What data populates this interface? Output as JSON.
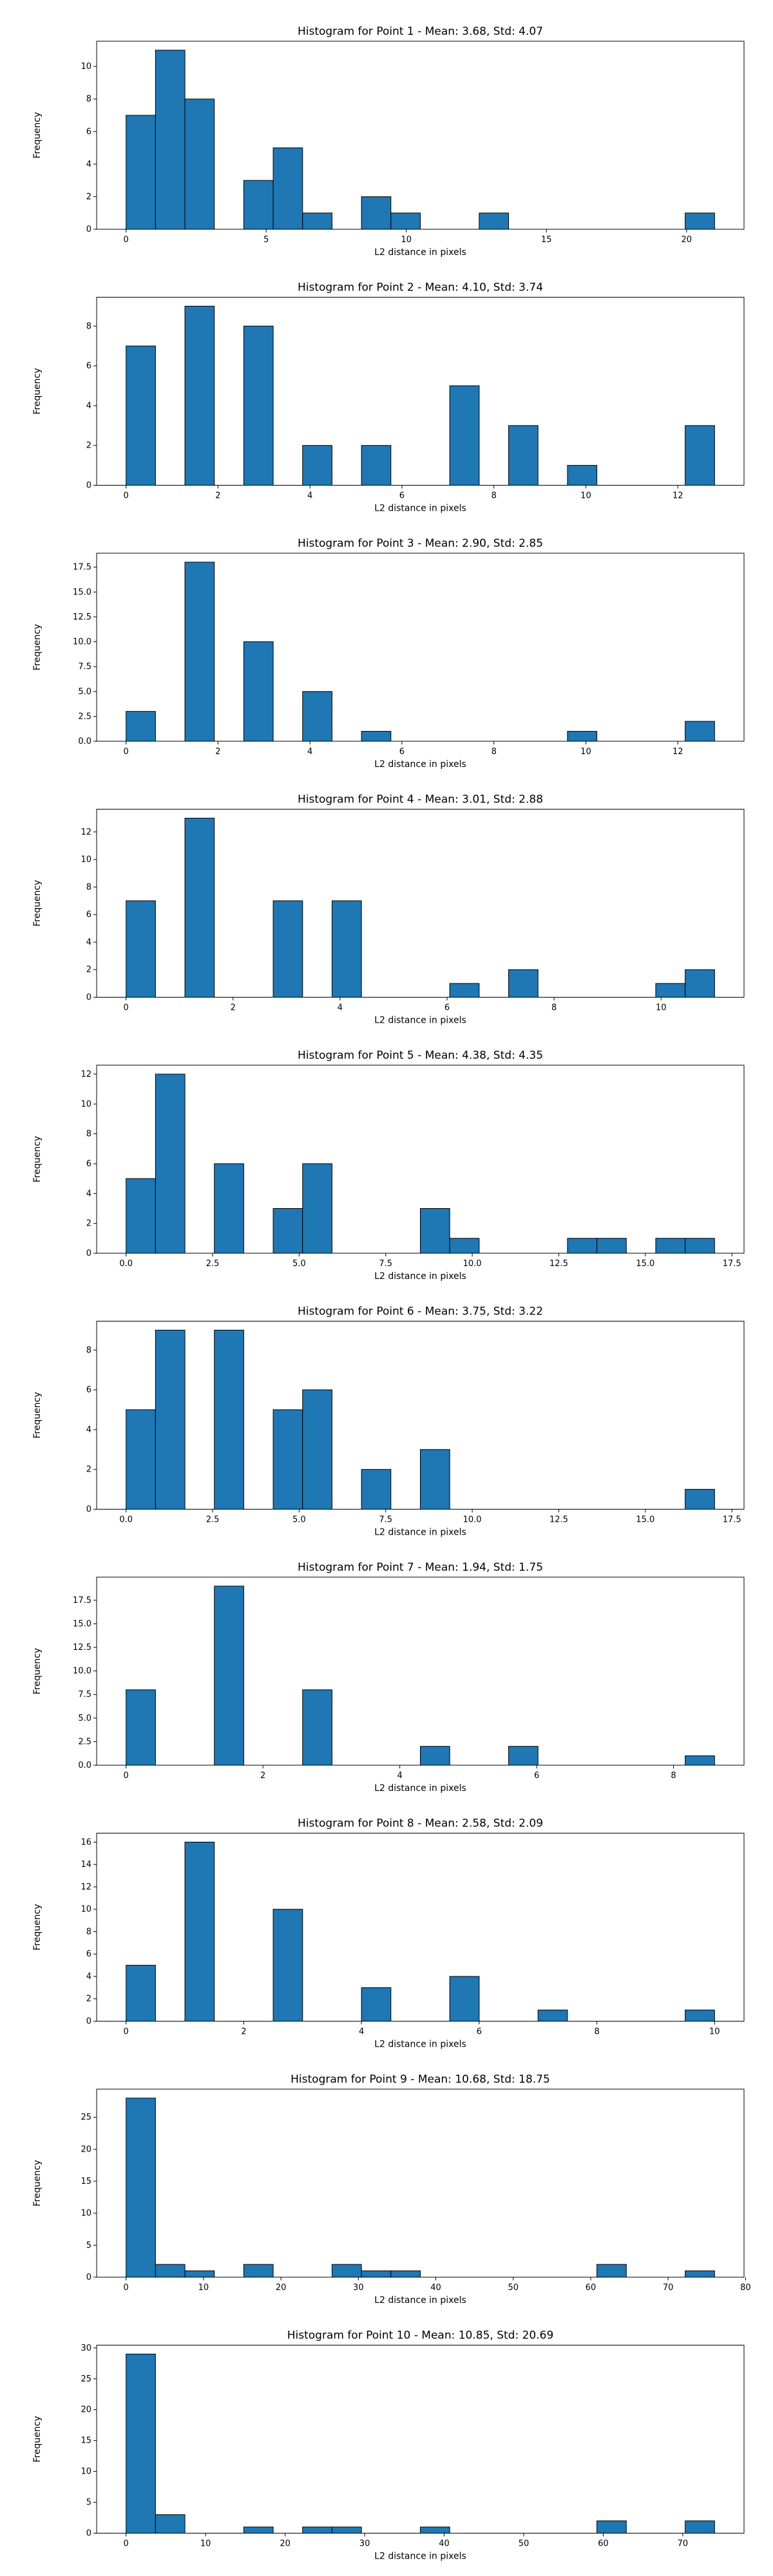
{
  "colors": {
    "bar_fill": "#1f77b4",
    "bar_edge": "#000000",
    "background": "#ffffff"
  },
  "chart_data": [
    {
      "type": "bar",
      "title": "Histogram for Point 1 - Mean: 3.68, Std: 4.07",
      "xlabel": "L2 distance in pixels",
      "ylabel": "Frequency",
      "xlim": [
        -1.05,
        22.05
      ],
      "ylim": [
        0,
        11.55
      ],
      "xticks": [
        {
          "v": 0,
          "label": "0"
        },
        {
          "v": 5,
          "label": "5"
        },
        {
          "v": 10,
          "label": "10"
        },
        {
          "v": 15,
          "label": "15"
        },
        {
          "v": 20,
          "label": "20"
        }
      ],
      "yticks": [
        {
          "v": 0,
          "label": "0"
        },
        {
          "v": 2,
          "label": "2"
        },
        {
          "v": 4,
          "label": "4"
        },
        {
          "v": 6,
          "label": "6"
        },
        {
          "v": 8,
          "label": "8"
        },
        {
          "v": 10,
          "label": "10"
        }
      ],
      "bin_edges": [
        0,
        1.05,
        2.1,
        3.15,
        4.2,
        5.25,
        6.3,
        7.35,
        8.4,
        9.45,
        10.5,
        11.55,
        12.6,
        13.65,
        14.7,
        15.75,
        16.8,
        17.85,
        18.9,
        19.95,
        21.0
      ],
      "counts": [
        7,
        11,
        8,
        0,
        3,
        5,
        1,
        0,
        2,
        1,
        0,
        0,
        1,
        0,
        0,
        0,
        0,
        0,
        0,
        1
      ]
    },
    {
      "type": "bar",
      "title": "Histogram for Point 2 - Mean: 4.10, Std: 3.74",
      "xlabel": "L2 distance in pixels",
      "ylabel": "Frequency",
      "xlim": [
        -0.64,
        13.44
      ],
      "ylim": [
        0,
        9.45
      ],
      "xticks": [
        {
          "v": 0,
          "label": "0"
        },
        {
          "v": 2,
          "label": "2"
        },
        {
          "v": 4,
          "label": "4"
        },
        {
          "v": 6,
          "label": "6"
        },
        {
          "v": 8,
          "label": "8"
        },
        {
          "v": 10,
          "label": "10"
        },
        {
          "v": 12,
          "label": "12"
        }
      ],
      "yticks": [
        {
          "v": 0,
          "label": "0"
        },
        {
          "v": 2,
          "label": "2"
        },
        {
          "v": 4,
          "label": "4"
        },
        {
          "v": 6,
          "label": "6"
        },
        {
          "v": 8,
          "label": "8"
        }
      ],
      "bin_edges": [
        0,
        0.64,
        1.28,
        1.92,
        2.56,
        3.2,
        3.84,
        4.48,
        5.12,
        5.76,
        6.4,
        7.04,
        7.68,
        8.32,
        8.96,
        9.6,
        10.24,
        10.88,
        11.52,
        12.16,
        12.8
      ],
      "counts": [
        7,
        0,
        9,
        0,
        8,
        0,
        2,
        0,
        2,
        0,
        0,
        5,
        0,
        3,
        0,
        1,
        0,
        0,
        0,
        3
      ]
    },
    {
      "type": "bar",
      "title": "Histogram for Point 3 - Mean: 2.90, Std: 2.85",
      "xlabel": "L2 distance in pixels",
      "ylabel": "Frequency",
      "xlim": [
        -0.64,
        13.44
      ],
      "ylim": [
        0,
        18.9
      ],
      "xticks": [
        {
          "v": 0,
          "label": "0"
        },
        {
          "v": 2,
          "label": "2"
        },
        {
          "v": 4,
          "label": "4"
        },
        {
          "v": 6,
          "label": "6"
        },
        {
          "v": 8,
          "label": "8"
        },
        {
          "v": 10,
          "label": "10"
        },
        {
          "v": 12,
          "label": "12"
        }
      ],
      "yticks": [
        {
          "v": 0,
          "label": "0.0"
        },
        {
          "v": 2.5,
          "label": "2.5"
        },
        {
          "v": 5,
          "label": "5.0"
        },
        {
          "v": 7.5,
          "label": "7.5"
        },
        {
          "v": 10,
          "label": "10.0"
        },
        {
          "v": 12.5,
          "label": "12.5"
        },
        {
          "v": 15,
          "label": "15.0"
        },
        {
          "v": 17.5,
          "label": "17.5"
        }
      ],
      "bin_edges": [
        0,
        0.64,
        1.28,
        1.92,
        2.56,
        3.2,
        3.84,
        4.48,
        5.12,
        5.76,
        6.4,
        7.04,
        7.68,
        8.32,
        8.96,
        9.6,
        10.24,
        10.88,
        11.52,
        12.16,
        12.8
      ],
      "counts": [
        3,
        0,
        18,
        0,
        10,
        0,
        5,
        0,
        1,
        0,
        0,
        0,
        0,
        0,
        0,
        1,
        0,
        0,
        0,
        2
      ]
    },
    {
      "type": "bar",
      "title": "Histogram for Point 4 - Mean: 3.01, Std: 2.88",
      "xlabel": "L2 distance in pixels",
      "ylabel": "Frequency",
      "xlim": [
        -0.55,
        11.55
      ],
      "ylim": [
        0,
        13.65
      ],
      "xticks": [
        {
          "v": 0,
          "label": "0"
        },
        {
          "v": 2,
          "label": "2"
        },
        {
          "v": 4,
          "label": "4"
        },
        {
          "v": 6,
          "label": "6"
        },
        {
          "v": 8,
          "label": "8"
        },
        {
          "v": 10,
          "label": "10"
        }
      ],
      "yticks": [
        {
          "v": 0,
          "label": "0"
        },
        {
          "v": 2,
          "label": "2"
        },
        {
          "v": 4,
          "label": "4"
        },
        {
          "v": 6,
          "label": "6"
        },
        {
          "v": 8,
          "label": "8"
        },
        {
          "v": 10,
          "label": "10"
        },
        {
          "v": 12,
          "label": "12"
        }
      ],
      "bin_edges": [
        0,
        0.55,
        1.1,
        1.65,
        2.2,
        2.75,
        3.3,
        3.85,
        4.4,
        4.95,
        5.5,
        6.05,
        6.6,
        7.15,
        7.7,
        8.25,
        8.8,
        9.35,
        9.9,
        10.45,
        11.0
      ],
      "counts": [
        7,
        0,
        13,
        0,
        0,
        7,
        0,
        7,
        0,
        0,
        0,
        1,
        0,
        2,
        0,
        0,
        0,
        0,
        1,
        2
      ]
    },
    {
      "type": "bar",
      "title": "Histogram for Point 5 - Mean: 4.38, Std: 4.35",
      "xlabel": "L2 distance in pixels",
      "ylabel": "Frequency",
      "xlim": [
        -0.85,
        17.85
      ],
      "ylim": [
        0,
        12.6
      ],
      "xticks": [
        {
          "v": 0,
          "label": "0.0"
        },
        {
          "v": 2.5,
          "label": "2.5"
        },
        {
          "v": 5,
          "label": "5.0"
        },
        {
          "v": 7.5,
          "label": "7.5"
        },
        {
          "v": 10,
          "label": "10.0"
        },
        {
          "v": 12.5,
          "label": "12.5"
        },
        {
          "v": 15,
          "label": "15.0"
        },
        {
          "v": 17.5,
          "label": "17.5"
        }
      ],
      "yticks": [
        {
          "v": 0,
          "label": "0"
        },
        {
          "v": 2,
          "label": "2"
        },
        {
          "v": 4,
          "label": "4"
        },
        {
          "v": 6,
          "label": "6"
        },
        {
          "v": 8,
          "label": "8"
        },
        {
          "v": 10,
          "label": "10"
        },
        {
          "v": 12,
          "label": "12"
        }
      ],
      "bin_edges": [
        0,
        0.85,
        1.7,
        2.55,
        3.4,
        4.25,
        5.1,
        5.95,
        6.8,
        7.65,
        8.5,
        9.35,
        10.2,
        11.05,
        11.9,
        12.75,
        13.6,
        14.45,
        15.3,
        16.15,
        17.0
      ],
      "counts": [
        5,
        12,
        0,
        6,
        0,
        3,
        6,
        0,
        0,
        0,
        3,
        1,
        0,
        0,
        0,
        1,
        1,
        0,
        1,
        1
      ]
    },
    {
      "type": "bar",
      "title": "Histogram for Point 6 - Mean: 3.75, Std: 3.22",
      "xlabel": "L2 distance in pixels",
      "ylabel": "Frequency",
      "xlim": [
        -0.85,
        17.85
      ],
      "ylim": [
        0,
        9.45
      ],
      "xticks": [
        {
          "v": 0,
          "label": "0.0"
        },
        {
          "v": 2.5,
          "label": "2.5"
        },
        {
          "v": 5,
          "label": "5.0"
        },
        {
          "v": 7.5,
          "label": "7.5"
        },
        {
          "v": 10,
          "label": "10.0"
        },
        {
          "v": 12.5,
          "label": "12.5"
        },
        {
          "v": 15,
          "label": "15.0"
        },
        {
          "v": 17.5,
          "label": "17.5"
        }
      ],
      "yticks": [
        {
          "v": 0,
          "label": "0"
        },
        {
          "v": 2,
          "label": "2"
        },
        {
          "v": 4,
          "label": "4"
        },
        {
          "v": 6,
          "label": "6"
        },
        {
          "v": 8,
          "label": "8"
        }
      ],
      "bin_edges": [
        0,
        0.85,
        1.7,
        2.55,
        3.4,
        4.25,
        5.1,
        5.95,
        6.8,
        7.65,
        8.5,
        9.35,
        10.2,
        11.05,
        11.9,
        12.75,
        13.6,
        14.45,
        15.3,
        16.15,
        17.0
      ],
      "counts": [
        5,
        9,
        0,
        9,
        0,
        5,
        6,
        0,
        2,
        0,
        3,
        0,
        0,
        0,
        0,
        0,
        0,
        0,
        0,
        1
      ]
    },
    {
      "type": "bar",
      "title": "Histogram for Point 7 - Mean: 1.94, Std: 1.75",
      "xlabel": "L2 distance in pixels",
      "ylabel": "Frequency",
      "xlim": [
        -0.43,
        9.03
      ],
      "ylim": [
        0,
        19.95
      ],
      "xticks": [
        {
          "v": 0,
          "label": "0"
        },
        {
          "v": 2,
          "label": "2"
        },
        {
          "v": 4,
          "label": "4"
        },
        {
          "v": 6,
          "label": "6"
        },
        {
          "v": 8,
          "label": "8"
        }
      ],
      "yticks": [
        {
          "v": 0,
          "label": "0.0"
        },
        {
          "v": 2.5,
          "label": "2.5"
        },
        {
          "v": 5,
          "label": "5.0"
        },
        {
          "v": 7.5,
          "label": "7.5"
        },
        {
          "v": 10,
          "label": "10.0"
        },
        {
          "v": 12.5,
          "label": "12.5"
        },
        {
          "v": 15,
          "label": "15.0"
        },
        {
          "v": 17.5,
          "label": "17.5"
        }
      ],
      "bin_edges": [
        0,
        0.43,
        0.86,
        1.29,
        1.72,
        2.15,
        2.58,
        3.01,
        3.44,
        3.87,
        4.3,
        4.73,
        5.16,
        5.59,
        6.02,
        6.45,
        6.88,
        7.31,
        7.74,
        8.17,
        8.6
      ],
      "counts": [
        8,
        0,
        0,
        19,
        0,
        0,
        8,
        0,
        0,
        0,
        2,
        0,
        0,
        2,
        0,
        0,
        0,
        0,
        0,
        1
      ]
    },
    {
      "type": "bar",
      "title": "Histogram for Point 8 - Mean: 2.58, Std: 2.09",
      "xlabel": "L2 distance in pixels",
      "ylabel": "Frequency",
      "xlim": [
        -0.5,
        10.5
      ],
      "ylim": [
        0,
        16.8
      ],
      "xticks": [
        {
          "v": 0,
          "label": "0"
        },
        {
          "v": 2,
          "label": "2"
        },
        {
          "v": 4,
          "label": "4"
        },
        {
          "v": 6,
          "label": "6"
        },
        {
          "v": 8,
          "label": "8"
        },
        {
          "v": 10,
          "label": "10"
        }
      ],
      "yticks": [
        {
          "v": 0,
          "label": "0"
        },
        {
          "v": 2,
          "label": "2"
        },
        {
          "v": 4,
          "label": "4"
        },
        {
          "v": 6,
          "label": "6"
        },
        {
          "v": 8,
          "label": "8"
        },
        {
          "v": 10,
          "label": "10"
        },
        {
          "v": 12,
          "label": "12"
        },
        {
          "v": 14,
          "label": "14"
        },
        {
          "v": 16,
          "label": "16"
        }
      ],
      "bin_edges": [
        0,
        0.5,
        1.0,
        1.5,
        2.0,
        2.5,
        3.0,
        3.5,
        4.0,
        4.5,
        5.0,
        5.5,
        6.0,
        6.5,
        7.0,
        7.5,
        8.0,
        8.5,
        9.0,
        9.5,
        10.0
      ],
      "counts": [
        5,
        0,
        16,
        0,
        0,
        10,
        0,
        0,
        3,
        0,
        0,
        4,
        0,
        0,
        1,
        0,
        0,
        0,
        0,
        1
      ]
    },
    {
      "type": "bar",
      "title": "Histogram for Point 9 - Mean: 10.68, Std: 18.75",
      "xlabel": "L2 distance in pixels",
      "ylabel": "Frequency",
      "xlim": [
        -3.8,
        79.8
      ],
      "ylim": [
        0,
        29.4
      ],
      "xticks": [
        {
          "v": 0,
          "label": "0"
        },
        {
          "v": 10,
          "label": "10"
        },
        {
          "v": 20,
          "label": "20"
        },
        {
          "v": 30,
          "label": "30"
        },
        {
          "v": 40,
          "label": "40"
        },
        {
          "v": 50,
          "label": "50"
        },
        {
          "v": 60,
          "label": "60"
        },
        {
          "v": 70,
          "label": "70"
        },
        {
          "v": 80,
          "label": "80"
        }
      ],
      "yticks": [
        {
          "v": 0,
          "label": "0"
        },
        {
          "v": 5,
          "label": "5"
        },
        {
          "v": 10,
          "label": "10"
        },
        {
          "v": 15,
          "label": "15"
        },
        {
          "v": 20,
          "label": "20"
        },
        {
          "v": 25,
          "label": "25"
        }
      ],
      "bin_edges": [
        0,
        3.8,
        7.6,
        11.4,
        15.2,
        19.0,
        22.8,
        26.6,
        30.4,
        34.2,
        38.0,
        41.8,
        45.6,
        49.4,
        53.2,
        57.0,
        60.8,
        64.6,
        68.4,
        72.2,
        76.0
      ],
      "counts": [
        28,
        2,
        1,
        0,
        2,
        0,
        0,
        2,
        1,
        1,
        0,
        0,
        0,
        0,
        0,
        0,
        2,
        0,
        0,
        1
      ]
    },
    {
      "type": "bar",
      "title": "Histogram for Point 10 - Mean: 10.85, Std: 20.69",
      "xlabel": "L2 distance in pixels",
      "ylabel": "Frequency",
      "xlim": [
        -3.7,
        77.7
      ],
      "ylim": [
        0,
        30.45
      ],
      "xticks": [
        {
          "v": 0,
          "label": "0"
        },
        {
          "v": 10,
          "label": "10"
        },
        {
          "v": 20,
          "label": "20"
        },
        {
          "v": 30,
          "label": "30"
        },
        {
          "v": 40,
          "label": "40"
        },
        {
          "v": 50,
          "label": "50"
        },
        {
          "v": 60,
          "label": "60"
        },
        {
          "v": 70,
          "label": "70"
        }
      ],
      "yticks": [
        {
          "v": 0,
          "label": "0"
        },
        {
          "v": 5,
          "label": "5"
        },
        {
          "v": 10,
          "label": "10"
        },
        {
          "v": 15,
          "label": "15"
        },
        {
          "v": 20,
          "label": "20"
        },
        {
          "v": 25,
          "label": "25"
        },
        {
          "v": 30,
          "label": "30"
        }
      ],
      "bin_edges": [
        0,
        3.7,
        7.4,
        11.1,
        14.8,
        18.5,
        22.2,
        25.9,
        29.6,
        33.3,
        37.0,
        40.7,
        44.4,
        48.1,
        51.8,
        55.5,
        59.2,
        62.9,
        66.6,
        70.3,
        74.0
      ],
      "counts": [
        29,
        3,
        0,
        0,
        1,
        0,
        1,
        1,
        0,
        0,
        1,
        0,
        0,
        0,
        0,
        0,
        2,
        0,
        0,
        2
      ]
    }
  ]
}
